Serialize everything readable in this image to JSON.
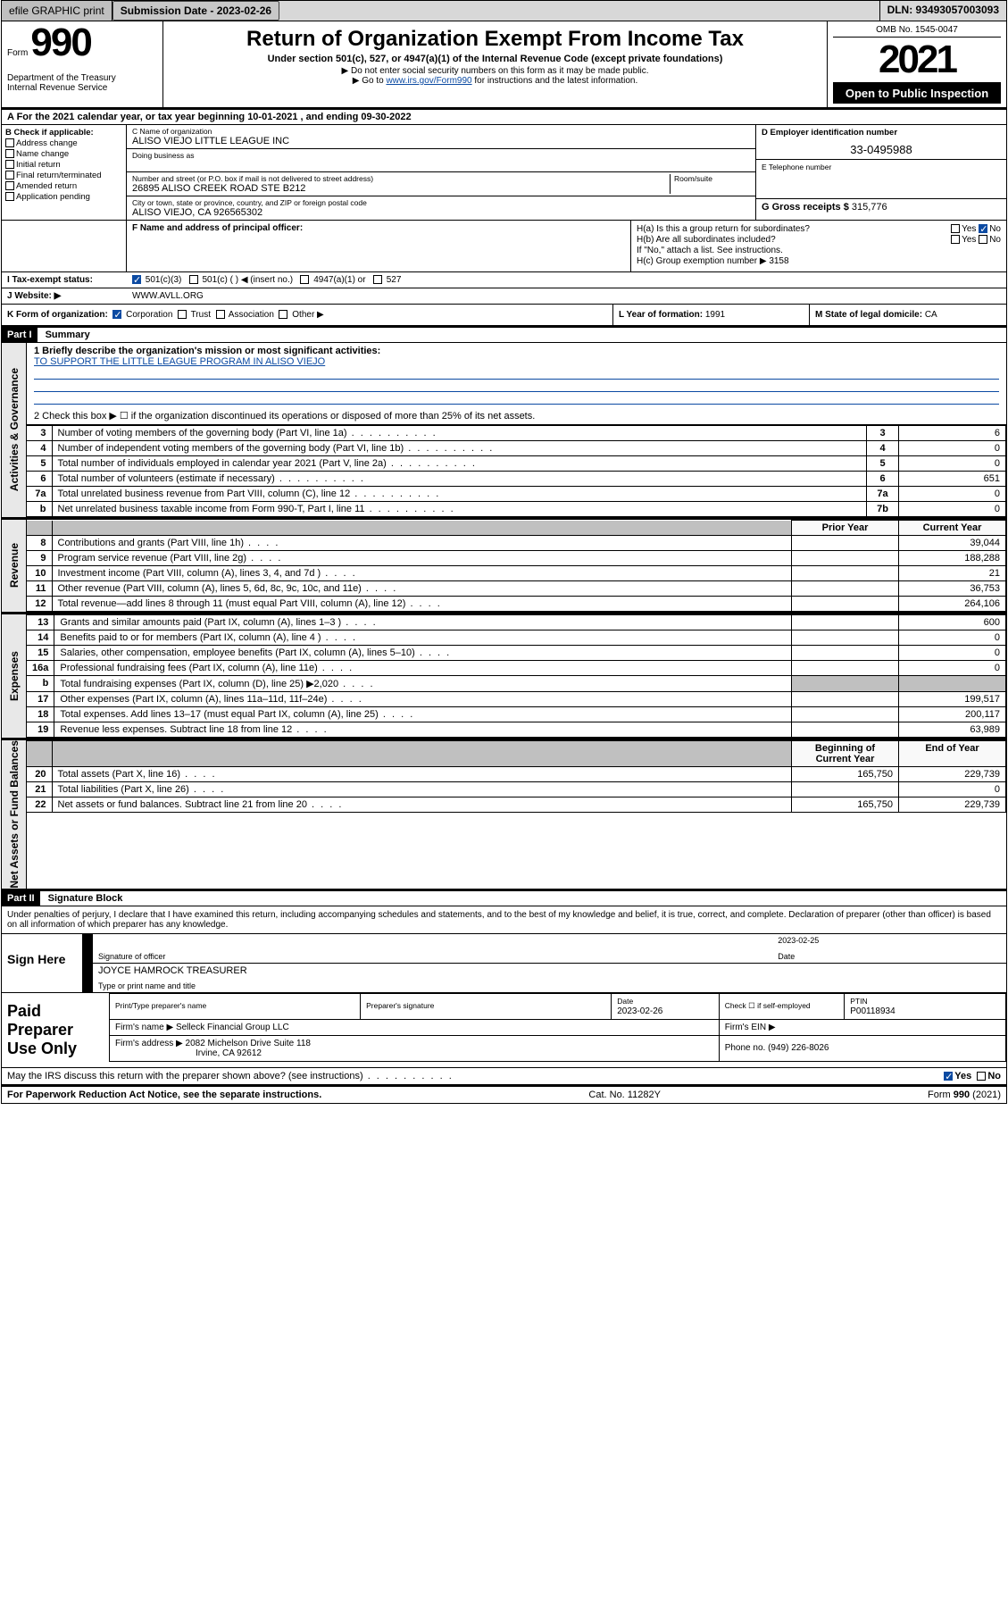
{
  "topbar": {
    "efile": "efile GRAPHIC print",
    "submission_label": "Submission Date - 2023-02-26",
    "dln": "DLN: 93493057003093"
  },
  "header": {
    "form_prefix": "Form",
    "form_number": "990",
    "dept": "Department of the Treasury\nInternal Revenue Service",
    "title": "Return of Organization Exempt From Income Tax",
    "subtitle": "Under section 501(c), 527, or 4947(a)(1) of the Internal Revenue Code (except private foundations)",
    "note1": "Do not enter social security numbers on this form as it may be made public.",
    "note2_pre": "Go to ",
    "note2_link": "www.irs.gov/Form990",
    "note2_post": " for instructions and the latest information.",
    "omb": "OMB No. 1545-0047",
    "year": "2021",
    "public": "Open to Public Inspection"
  },
  "line_a": "A For the 2021 calendar year, or tax year beginning 10-01-2021   , and ending 09-30-2022",
  "checks": {
    "title": "B Check if applicable:",
    "items": [
      "Address change",
      "Name change",
      "Initial return",
      "Final return/terminated",
      "Amended return",
      "Application pending"
    ]
  },
  "org": {
    "name_label": "C Name of organization",
    "name": "ALISO VIEJO LITTLE LEAGUE INC",
    "dba_label": "Doing business as",
    "dba": "",
    "street_label": "Number and street (or P.O. box if mail is not delivered to street address)",
    "room_label": "Room/suite",
    "street": "26895 ALISO CREEK ROAD STE B212",
    "city_label": "City or town, state or province, country, and ZIP or foreign postal code",
    "city": "ALISO VIEJO, CA  926565302"
  },
  "d": {
    "label": "D Employer identification number",
    "value": "33-0495988"
  },
  "e": {
    "label": "E Telephone number",
    "value": ""
  },
  "g": {
    "label": "G Gross receipts $",
    "value": "315,776"
  },
  "f": {
    "label": "F Name and address of principal officer:",
    "value": ""
  },
  "h": {
    "a_label": "H(a)  Is this a group return for subordinates?",
    "a_yes": "Yes",
    "a_no": "No",
    "b_label": "H(b)  Are all subordinates included?",
    "b_note": "If \"No,\" attach a list. See instructions.",
    "c_label": "H(c)  Group exemption number ▶",
    "c_value": "3158"
  },
  "i": {
    "label": "I    Tax-exempt status:",
    "opts": [
      "501(c)(3)",
      "501(c) (   ) ◀ (insert no.)",
      "4947(a)(1) or",
      "527"
    ]
  },
  "j": {
    "label": "J    Website: ▶",
    "value": "WWW.AVLL.ORG"
  },
  "k": {
    "label": "K Form of organization:",
    "opts": [
      "Corporation",
      "Trust",
      "Association",
      "Other ▶"
    ]
  },
  "l": {
    "label": "L Year of formation:",
    "value": "1991"
  },
  "m": {
    "label": "M State of legal domicile:",
    "value": "CA"
  },
  "part1": {
    "hdr": "Part I",
    "title": "Summary"
  },
  "summary": {
    "q1": "1  Briefly describe the organization's mission or most significant activities:",
    "mission": "TO SUPPORT THE LITTLE LEAGUE PROGRAM IN ALISO VIEJO",
    "q2": "2   Check this box ▶ ☐  if the organization discontinued its operations or disposed of more than 25% of its net assets.",
    "rows3_7": [
      {
        "n": "3",
        "label": "Number of voting members of the governing body (Part VI, line 1a)",
        "ref": "3",
        "val": "6"
      },
      {
        "n": "4",
        "label": "Number of independent voting members of the governing body (Part VI, line 1b)",
        "ref": "4",
        "val": "0"
      },
      {
        "n": "5",
        "label": "Total number of individuals employed in calendar year 2021 (Part V, line 2a)",
        "ref": "5",
        "val": "0"
      },
      {
        "n": "6",
        "label": "Total number of volunteers (estimate if necessary)",
        "ref": "6",
        "val": "651"
      },
      {
        "n": "7a",
        "label": "Total unrelated business revenue from Part VIII, column (C), line 12",
        "ref": "7a",
        "val": "0"
      },
      {
        "n": "b",
        "label": "Net unrelated business taxable income from Form 990-T, Part I, line 11",
        "ref": "7b",
        "val": "0"
      }
    ],
    "col_prior": "Prior Year",
    "col_current": "Current Year",
    "revenue": [
      {
        "n": "8",
        "label": "Contributions and grants (Part VIII, line 1h)",
        "prior": "",
        "cur": "39,044"
      },
      {
        "n": "9",
        "label": "Program service revenue (Part VIII, line 2g)",
        "prior": "",
        "cur": "188,288"
      },
      {
        "n": "10",
        "label": "Investment income (Part VIII, column (A), lines 3, 4, and 7d )",
        "prior": "",
        "cur": "21"
      },
      {
        "n": "11",
        "label": "Other revenue (Part VIII, column (A), lines 5, 6d, 8c, 9c, 10c, and 11e)",
        "prior": "",
        "cur": "36,753"
      },
      {
        "n": "12",
        "label": "Total revenue—add lines 8 through 11 (must equal Part VIII, column (A), line 12)",
        "prior": "",
        "cur": "264,106"
      }
    ],
    "expenses": [
      {
        "n": "13",
        "label": "Grants and similar amounts paid (Part IX, column (A), lines 1–3 )",
        "prior": "",
        "cur": "600"
      },
      {
        "n": "14",
        "label": "Benefits paid to or for members (Part IX, column (A), line 4 )",
        "prior": "",
        "cur": "0"
      },
      {
        "n": "15",
        "label": "Salaries, other compensation, employee benefits (Part IX, column (A), lines 5–10)",
        "prior": "",
        "cur": "0"
      },
      {
        "n": "16a",
        "label": "Professional fundraising fees (Part IX, column (A), line 11e)",
        "prior": "",
        "cur": "0"
      },
      {
        "n": "b",
        "label": "Total fundraising expenses (Part IX, column (D), line 25) ▶2,020",
        "prior": "shade",
        "cur": "shade"
      },
      {
        "n": "17",
        "label": "Other expenses (Part IX, column (A), lines 11a–11d, 11f–24e)",
        "prior": "",
        "cur": "199,517"
      },
      {
        "n": "18",
        "label": "Total expenses. Add lines 13–17 (must equal Part IX, column (A), line 25)",
        "prior": "",
        "cur": "200,117"
      },
      {
        "n": "19",
        "label": "Revenue less expenses. Subtract line 18 from line 12",
        "prior": "",
        "cur": "63,989"
      }
    ],
    "col_begin": "Beginning of Current Year",
    "col_end": "End of Year",
    "netassets": [
      {
        "n": "20",
        "label": "Total assets (Part X, line 16)",
        "prior": "165,750",
        "cur": "229,739"
      },
      {
        "n": "21",
        "label": "Total liabilities (Part X, line 26)",
        "prior": "",
        "cur": "0"
      },
      {
        "n": "22",
        "label": "Net assets or fund balances. Subtract line 21 from line 20",
        "prior": "165,750",
        "cur": "229,739"
      }
    ]
  },
  "vlabels": {
    "gov": "Activities & Governance",
    "rev": "Revenue",
    "exp": "Expenses",
    "net": "Net Assets or Fund Balances"
  },
  "part2": {
    "hdr": "Part II",
    "title": "Signature Block"
  },
  "penalty": "Under penalties of perjury, I declare that I have examined this return, including accompanying schedules and statements, and to the best of my knowledge and belief, it is true, correct, and complete. Declaration of preparer (other than officer) is based on all information of which preparer has any knowledge.",
  "sign": {
    "here": "Sign Here",
    "sig_label": "Signature of officer",
    "date": "2023-02-25",
    "date_label": "Date",
    "name": "JOYCE HAMROCK  TREASURER",
    "name_label": "Type or print name and title"
  },
  "preparer": {
    "title": "Paid Preparer Use Only",
    "col_print": "Print/Type preparer's name",
    "col_sig": "Preparer's signature",
    "col_date": "Date",
    "date": "2023-02-26",
    "col_check": "Check ☐ if self-employed",
    "col_ptin": "PTIN",
    "ptin": "P00118934",
    "firm_label": "Firm's name    ▶",
    "firm": "Selleck Financial Group LLC",
    "ein_label": "Firm's EIN ▶",
    "addr_label": "Firm's address ▶",
    "addr1": "2082 Michelson Drive Suite 118",
    "addr2": "Irvine, CA  92612",
    "phone_label": "Phone no.",
    "phone": "(949) 226-8026"
  },
  "discuss": {
    "q": "May the IRS discuss this return with the preparer shown above? (see instructions)",
    "yes": "Yes",
    "no": "No"
  },
  "footer": {
    "left": "For Paperwork Reduction Act Notice, see the separate instructions.",
    "mid": "Cat. No. 11282Y",
    "right": "Form 990 (2021)"
  }
}
